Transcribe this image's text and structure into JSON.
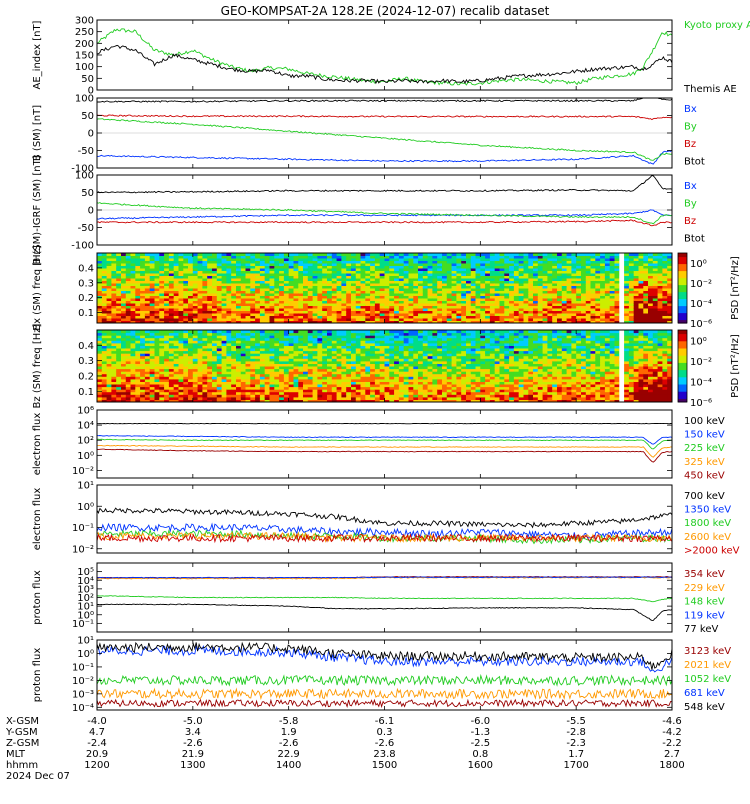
{
  "title": "GEO-KOMPSAT-2A 128.2E (2024-12-07) recalib dataset",
  "time_axis": {
    "x_range": [
      1200,
      1800
    ],
    "ticks": [
      "1200",
      "1300",
      "1400",
      "1500",
      "1600",
      "1700",
      "1800"
    ],
    "row_labels": [
      "X-GSM",
      "Y-GSM",
      "Z-GSM",
      "MLT",
      "hhmm",
      "2024 Dec 07"
    ],
    "rows": [
      [
        "-4.0",
        "-5.0",
        "-5.8",
        "-6.1",
        "-6.0",
        "-5.5",
        "-4.6"
      ],
      [
        "4.7",
        "3.4",
        "1.9",
        "0.3",
        "-1.3",
        "-2.8",
        "-4.2"
      ],
      [
        "-2.4",
        "-2.6",
        "-2.6",
        "-2.6",
        "-2.5",
        "-2.3",
        "-2.2"
      ],
      [
        "20.9",
        "21.9",
        "22.9",
        "23.8",
        "0.8",
        "1.7",
        "2.7"
      ]
    ]
  },
  "colors": {
    "black": "#000000",
    "blue": "#0033ff",
    "green": "#22cc22",
    "red": "#cc0000",
    "orange": "#ff9900",
    "darkred": "#990000"
  },
  "chart_data": [
    {
      "type": "line",
      "ylabel": "AE_index [nT]",
      "ylim": [
        0,
        300
      ],
      "yticks": [
        "0",
        "50",
        "100",
        "150",
        "200",
        "250",
        "300"
      ],
      "x": [
        1200,
        1220,
        1240,
        1260,
        1280,
        1300,
        1320,
        1340,
        1360,
        1380,
        1400,
        1420,
        1440,
        1460,
        1480,
        1500,
        1520,
        1540,
        1560,
        1580,
        1600,
        1620,
        1640,
        1660,
        1680,
        1700,
        1720,
        1740,
        1760,
        1770,
        1780,
        1790,
        1800
      ],
      "series": [
        {
          "name": "Kyoto proxy AE",
          "color": "#22cc22",
          "values": [
            200,
            260,
            250,
            170,
            150,
            170,
            130,
            100,
            80,
            95,
            90,
            70,
            60,
            50,
            40,
            35,
            50,
            35,
            30,
            25,
            30,
            40,
            45,
            40,
            35,
            30,
            50,
            60,
            70,
            100,
            170,
            250,
            230
          ]
        },
        {
          "name": "Themis AE",
          "color": "#000000",
          "values": [
            160,
            190,
            170,
            110,
            150,
            130,
            110,
            90,
            80,
            85,
            60,
            60,
            45,
            40,
            40,
            35,
            40,
            35,
            40,
            35,
            40,
            50,
            60,
            65,
            70,
            80,
            90,
            95,
            100,
            90,
            110,
            140,
            120
          ]
        }
      ]
    },
    {
      "type": "line",
      "ylabel": "B (SM) [nT]",
      "ylim": [
        -100,
        100
      ],
      "yticks": [
        "-100",
        "-50",
        "0",
        "50",
        "100"
      ],
      "x": [
        1200,
        1300,
        1400,
        1500,
        1600,
        1700,
        1760,
        1780,
        1790,
        1800
      ],
      "series": [
        {
          "name": "Bx",
          "color": "#0033ff",
          "values": [
            -65,
            -70,
            -75,
            -80,
            -80,
            -75,
            -65,
            -90,
            -55,
            -50
          ]
        },
        {
          "name": "By",
          "color": "#22cc22",
          "values": [
            40,
            25,
            5,
            -15,
            -35,
            -50,
            -55,
            -80,
            -60,
            -60
          ]
        },
        {
          "name": "Bz",
          "color": "#cc0000",
          "values": [
            50,
            48,
            48,
            47,
            47,
            47,
            47,
            40,
            45,
            45
          ]
        },
        {
          "name": "Btot",
          "color": "#000000",
          "values": [
            90,
            90,
            92,
            92,
            92,
            92,
            92,
            110,
            95,
            95
          ]
        }
      ]
    },
    {
      "type": "line",
      "ylabel": "B (SM)-IGRF (SM) [nT]",
      "ylim": [
        -100,
        100
      ],
      "yticks": [
        "-100",
        "-50",
        "0",
        "50",
        "100"
      ],
      "x": [
        1200,
        1300,
        1400,
        1500,
        1600,
        1700,
        1760,
        1780,
        1790,
        1800
      ],
      "series": [
        {
          "name": "Bx",
          "color": "#0033ff",
          "values": [
            -25,
            -20,
            -15,
            -15,
            -15,
            -15,
            -10,
            0,
            -15,
            -15
          ]
        },
        {
          "name": "By",
          "color": "#22cc22",
          "values": [
            20,
            5,
            0,
            -10,
            -15,
            -20,
            -20,
            -40,
            -15,
            -15
          ]
        },
        {
          "name": "Bz",
          "color": "#cc0000",
          "values": [
            -35,
            -35,
            -35,
            -35,
            -35,
            -33,
            -30,
            -45,
            -35,
            -35
          ]
        },
        {
          "name": "Btot",
          "color": "#000000",
          "values": [
            50,
            52,
            55,
            55,
            55,
            57,
            55,
            100,
            60,
            60
          ]
        }
      ]
    },
    {
      "type": "heatmap",
      "ylabel": "Bx (SM) freq [Hz]",
      "ylim": [
        0.03,
        0.5
      ],
      "yticks": [
        "0.1",
        "0.2",
        "0.3",
        "0.4"
      ],
      "colorbar": {
        "label": "PSD [nT²/Hz]",
        "ticks": [
          "10⁰",
          "10⁻²",
          "10⁻⁴",
          "10⁻⁶"
        ],
        "range_log10": [
          -6,
          1
        ]
      },
      "data_gap": [
        1745,
        1750
      ]
    },
    {
      "type": "heatmap",
      "ylabel": "Bz (SM) freq [Hz]",
      "ylim": [
        0.03,
        0.5
      ],
      "yticks": [
        "0.1",
        "0.2",
        "0.3",
        "0.4"
      ],
      "colorbar": {
        "label": "PSD [nT²/Hz]",
        "ticks": [
          "10⁰",
          "10⁻²",
          "10⁻⁴",
          "10⁻⁶"
        ],
        "range_log10": [
          -6,
          1
        ]
      },
      "data_gap": [
        1745,
        1750
      ]
    },
    {
      "type": "line",
      "ylabel": "electron flux",
      "log": true,
      "ylim_log10": [
        -3,
        6
      ],
      "yticks": [
        "10⁻²",
        "10⁰",
        "10²",
        "10⁴",
        "10⁶"
      ],
      "x": [
        1200,
        1300,
        1400,
        1500,
        1600,
        1700,
        1770,
        1780,
        1790,
        1800
      ],
      "series": [
        {
          "name": "100 keV",
          "color": "#000000",
          "log10": [
            4.2,
            4.2,
            4.2,
            4.2,
            4.2,
            4.2,
            4.2,
            4.2,
            4.2,
            4.2
          ]
        },
        {
          "name": "150 keV",
          "color": "#0033ff",
          "log10": [
            2.6,
            2.5,
            2.4,
            2.4,
            2.4,
            2.4,
            2.4,
            1.4,
            2.4,
            2.4
          ]
        },
        {
          "name": "225 keV",
          "color": "#22cc22",
          "log10": [
            2.1,
            2.0,
            2.0,
            2.0,
            2.0,
            2.0,
            2.0,
            0.8,
            1.9,
            2.0
          ]
        },
        {
          "name": "325 keV",
          "color": "#ff9900",
          "log10": [
            1.3,
            1.2,
            1.1,
            1.1,
            1.1,
            1.1,
            1.1,
            -0.3,
            1.0,
            1.1
          ]
        },
        {
          "name": "450 keV",
          "color": "#990000",
          "log10": [
            0.8,
            0.6,
            0.5,
            0.5,
            0.5,
            0.5,
            0.5,
            -1.0,
            0.4,
            0.5
          ]
        }
      ]
    },
    {
      "type": "line",
      "ylabel": "electron flux",
      "log": true,
      "ylim_log10": [
        -2.2,
        1
      ],
      "yticks": [
        "10⁻²",
        "10⁻¹",
        "10⁰",
        "10¹"
      ],
      "x": [
        1200,
        1250,
        1300,
        1350,
        1400,
        1450,
        1500,
        1550,
        1600,
        1650,
        1700,
        1750,
        1800
      ],
      "series": [
        {
          "name": "700 keV",
          "color": "#000000",
          "log10": [
            -0.2,
            -0.2,
            -0.25,
            -0.3,
            -0.35,
            -0.5,
            -0.8,
            -0.8,
            -0.85,
            -0.9,
            -0.8,
            -0.7,
            -0.4
          ]
        },
        {
          "name": "1350 keV",
          "color": "#0033ff",
          "log10": [
            -1.0,
            -1.0,
            -1.0,
            -1.0,
            -1.1,
            -1.2,
            -1.2,
            -1.3,
            -1.2,
            -1.3,
            -1.4,
            -1.3,
            -1.2
          ]
        },
        {
          "name": "1800 keV",
          "color": "#22cc22",
          "log10": [
            -1.3,
            -1.3,
            -1.3,
            -1.3,
            -1.4,
            -1.4,
            -1.5,
            -1.5,
            -1.5,
            -1.6,
            -1.6,
            -1.5,
            -1.5
          ]
        },
        {
          "name": "2600 keV",
          "color": "#ff9900",
          "log10": [
            -1.4,
            -1.4,
            -1.4,
            -1.4,
            -1.4,
            -1.5,
            -1.5,
            -1.5,
            -1.5,
            -1.5,
            -1.5,
            -1.5,
            -1.5
          ]
        },
        {
          "name": ">2000 keV",
          "color": "#cc0000",
          "log10": [
            -1.5,
            -1.5,
            -1.5,
            -1.5,
            -1.5,
            -1.5,
            -1.5,
            -1.5,
            -1.5,
            -1.5,
            -1.5,
            -1.5,
            -1.5
          ]
        }
      ]
    },
    {
      "type": "line",
      "ylabel": "proton flux",
      "log": true,
      "ylim_log10": [
        -2,
        6
      ],
      "yticks": [
        "10⁻¹",
        "10⁰",
        "10¹",
        "10²",
        "10³",
        "10⁴",
        "10⁵"
      ],
      "x": [
        1200,
        1300,
        1400,
        1450,
        1500,
        1600,
        1700,
        1760,
        1780,
        1790,
        1800
      ],
      "series": [
        {
          "name": "354 keV",
          "color": "#990000",
          "log10": [
            4.3,
            4.3,
            4.3,
            4.3,
            4.4,
            4.4,
            4.4,
            4.4,
            4.4,
            4.4,
            4.4
          ]
        },
        {
          "name": "229 keV",
          "color": "#ff9900",
          "log10": [
            4.2,
            4.2,
            4.2,
            4.2,
            4.3,
            4.3,
            4.3,
            4.3,
            4.3,
            4.3,
            4.3
          ]
        },
        {
          "name": "148 keV",
          "color": "#22cc22",
          "log10": [
            2.2,
            2.0,
            2.0,
            2.0,
            1.9,
            1.9,
            1.9,
            1.9,
            1.5,
            1.8,
            1.9
          ]
        },
        {
          "name": "119 keV",
          "color": "#0033ff",
          "log10": [
            4.3,
            4.3,
            4.3,
            4.3,
            4.35,
            4.35,
            4.35,
            4.35,
            4.35,
            4.35,
            4.35
          ]
        },
        {
          "name": "77 keV",
          "color": "#000000",
          "log10": [
            1.2,
            1.2,
            1.0,
            0.7,
            0.7,
            0.8,
            0.8,
            0.6,
            -0.7,
            0.4,
            0.6
          ]
        }
      ]
    },
    {
      "type": "line",
      "ylabel": "proton flux",
      "log": true,
      "ylim_log10": [
        -4.2,
        1
      ],
      "yticks": [
        "10⁻⁴",
        "10⁻³",
        "10⁻²",
        "10⁻¹",
        "10⁰",
        "10¹"
      ],
      "x": [
        1200,
        1300,
        1400,
        1450,
        1500,
        1600,
        1700,
        1770,
        1780,
        1800
      ],
      "series": [
        {
          "name": "3123 keV",
          "color": "#990000",
          "log10": [
            -3.7,
            -3.7,
            -3.7,
            -3.7,
            -3.7,
            -3.7,
            -3.7,
            -3.7,
            -3.7,
            -3.7
          ]
        },
        {
          "name": "2021 keV",
          "color": "#ff9900",
          "log10": [
            -3.0,
            -3.0,
            -3.0,
            -3.0,
            -3.0,
            -3.0,
            -3.0,
            -3.0,
            -3.0,
            -3.0
          ]
        },
        {
          "name": "1052 keV",
          "color": "#22cc22",
          "log10": [
            -2.0,
            -2.0,
            -2.0,
            -2.0,
            -2.0,
            -2.0,
            -2.0,
            -2.0,
            -2.0,
            -2.0
          ]
        },
        {
          "name": "681 keV",
          "color": "#0033ff",
          "log10": [
            0.2,
            0.2,
            0.1,
            -0.3,
            -0.6,
            -0.6,
            -0.6,
            -0.6,
            -1.5,
            -0.4
          ]
        },
        {
          "name": "548 keV",
          "color": "#000000",
          "log10": [
            0.4,
            0.5,
            0.4,
            0.0,
            -0.2,
            -0.2,
            -0.3,
            -0.3,
            -1.0,
            0.0
          ]
        }
      ]
    }
  ]
}
